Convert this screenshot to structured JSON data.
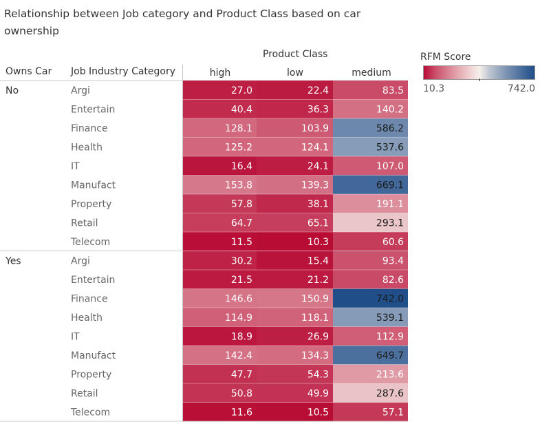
{
  "title": "Relationship between Job category and Product Class based on car ownership",
  "column_group_header": "Product Class",
  "row_headers": {
    "owns_car": "Owns Car",
    "job_category": "Job Industry Category"
  },
  "legend": {
    "title": "RFM Score",
    "min": "10.3",
    "max": "742.0"
  },
  "colors": {
    "low": "#b80c35",
    "mid": "#f7f0ea",
    "high": "#1f4e89"
  },
  "chart_data": {
    "type": "heatmap",
    "title": "Relationship between Job category and Product Class based on car ownership",
    "columns": [
      "high",
      "low",
      "medium"
    ],
    "groups": [
      {
        "name": "No",
        "rows": [
          {
            "category": "Argi",
            "values": [
              27.0,
              22.4,
              83.5
            ]
          },
          {
            "category": "Entertain",
            "values": [
              40.4,
              36.3,
              140.2
            ]
          },
          {
            "category": "Finance",
            "values": [
              128.1,
              103.9,
              586.2
            ]
          },
          {
            "category": "Health",
            "values": [
              125.2,
              124.1,
              537.6
            ]
          },
          {
            "category": "IT",
            "values": [
              16.4,
              24.1,
              107.0
            ]
          },
          {
            "category": "Manufact",
            "values": [
              153.8,
              139.3,
              669.1
            ]
          },
          {
            "category": "Property",
            "values": [
              57.8,
              38.1,
              191.1
            ]
          },
          {
            "category": "Retail",
            "values": [
              64.7,
              65.1,
              293.1
            ]
          },
          {
            "category": "Telecom",
            "values": [
              11.5,
              10.3,
              60.6
            ]
          }
        ]
      },
      {
        "name": "Yes",
        "rows": [
          {
            "category": "Argi",
            "values": [
              30.2,
              15.4,
              93.4
            ]
          },
          {
            "category": "Entertain",
            "values": [
              21.5,
              21.2,
              82.6
            ]
          },
          {
            "category": "Finance",
            "values": [
              146.6,
              150.9,
              742.0
            ]
          },
          {
            "category": "Health",
            "values": [
              114.9,
              118.1,
              539.1
            ]
          },
          {
            "category": "IT",
            "values": [
              18.9,
              26.9,
              112.9
            ]
          },
          {
            "category": "Manufact",
            "values": [
              142.4,
              134.3,
              649.7
            ]
          },
          {
            "category": "Property",
            "values": [
              47.7,
              54.3,
              213.6
            ]
          },
          {
            "category": "Retail",
            "values": [
              50.8,
              49.9,
              287.6
            ]
          },
          {
            "category": "Telecom",
            "values": [
              11.6,
              10.5,
              57.1
            ]
          }
        ]
      }
    ],
    "color_scale": {
      "min": 10.3,
      "max": 742.0,
      "center": 376.15
    }
  }
}
